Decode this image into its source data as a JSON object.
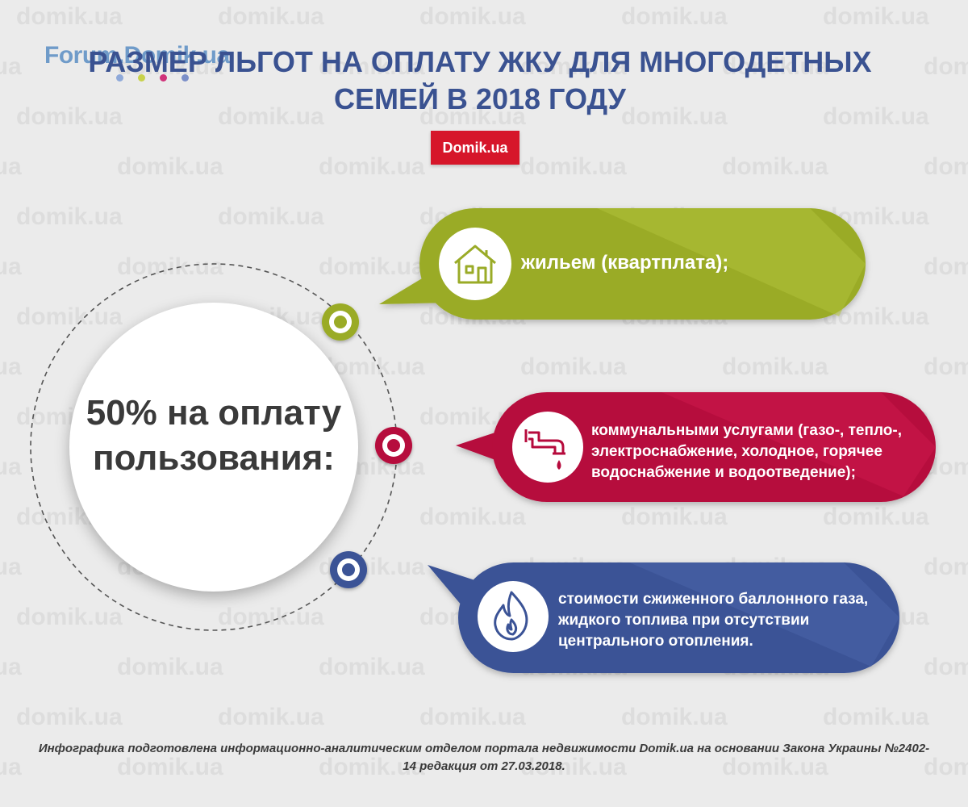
{
  "watermark": {
    "text": "domik.ua",
    "color": "#dddddd"
  },
  "forum_logo": {
    "text": "Forum.Domik.ua",
    "dot_colors": [
      "#8fa9d9",
      "#c8d24b",
      "#d0337a",
      "#7b8fc9"
    ]
  },
  "header": {
    "title": "РАЗМЕР ЛЬГОТ НА ОПЛАТУ ЖКУ ДЛЯ МНОГОДЕТНЫХ СЕМЕЙ В 2018 ГОДУ",
    "brand_badge": "Domik.ua"
  },
  "center": {
    "text": "50% на оплату пользования:"
  },
  "items": [
    {
      "icon": "house-icon",
      "color": "#9aab27",
      "text": "жильем (квартплата);"
    },
    {
      "icon": "pipe-icon",
      "color": "#b60a3c",
      "text": "коммунальными услугами (газо-, тепло-, электроснабжение, холодное, горячее водоснабжение и водоотведение);"
    },
    {
      "icon": "flame-icon",
      "color": "#3b5396",
      "text": "стоимости сжиженного баллонного газа, жидкого топлива при отсутствии центрального отопления."
    }
  ],
  "footer": {
    "credits": "Инфографика подготовлена информационно-аналитическим отделом портала недвижимости Domik.ua на основании Закона Украины №2402-14 редакция от 27.03.2018."
  }
}
